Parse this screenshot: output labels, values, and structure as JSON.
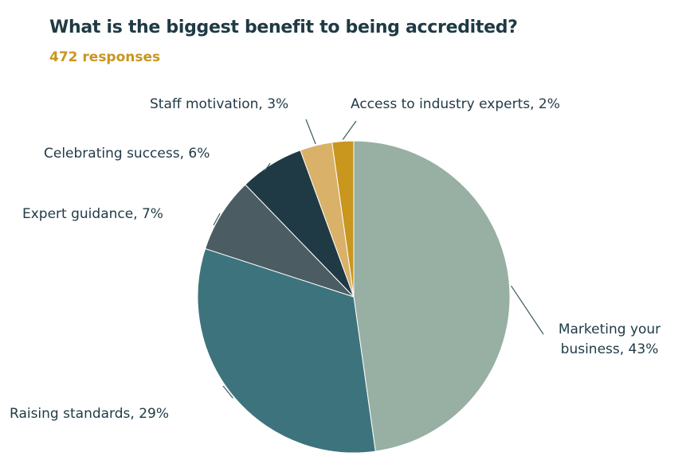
{
  "chart_data": {
    "type": "pie",
    "title": "What is the biggest benefit to being accredited?",
    "subtitle": "472 responses",
    "values": [
      43,
      29,
      7,
      6,
      3,
      2
    ],
    "value_labels": [
      "Marketing your business, 43%",
      "Raising standards, 29%",
      "Expert guidance, 7%",
      "Celebrating success, 6%",
      "Staff motivation, 3%",
      "Access to industry experts, 2%"
    ],
    "colors": [
      "#98afa3",
      "#3d737d",
      "#4b5c63",
      "#1f3a44",
      "#d9b168",
      "#c9961e"
    ]
  }
}
